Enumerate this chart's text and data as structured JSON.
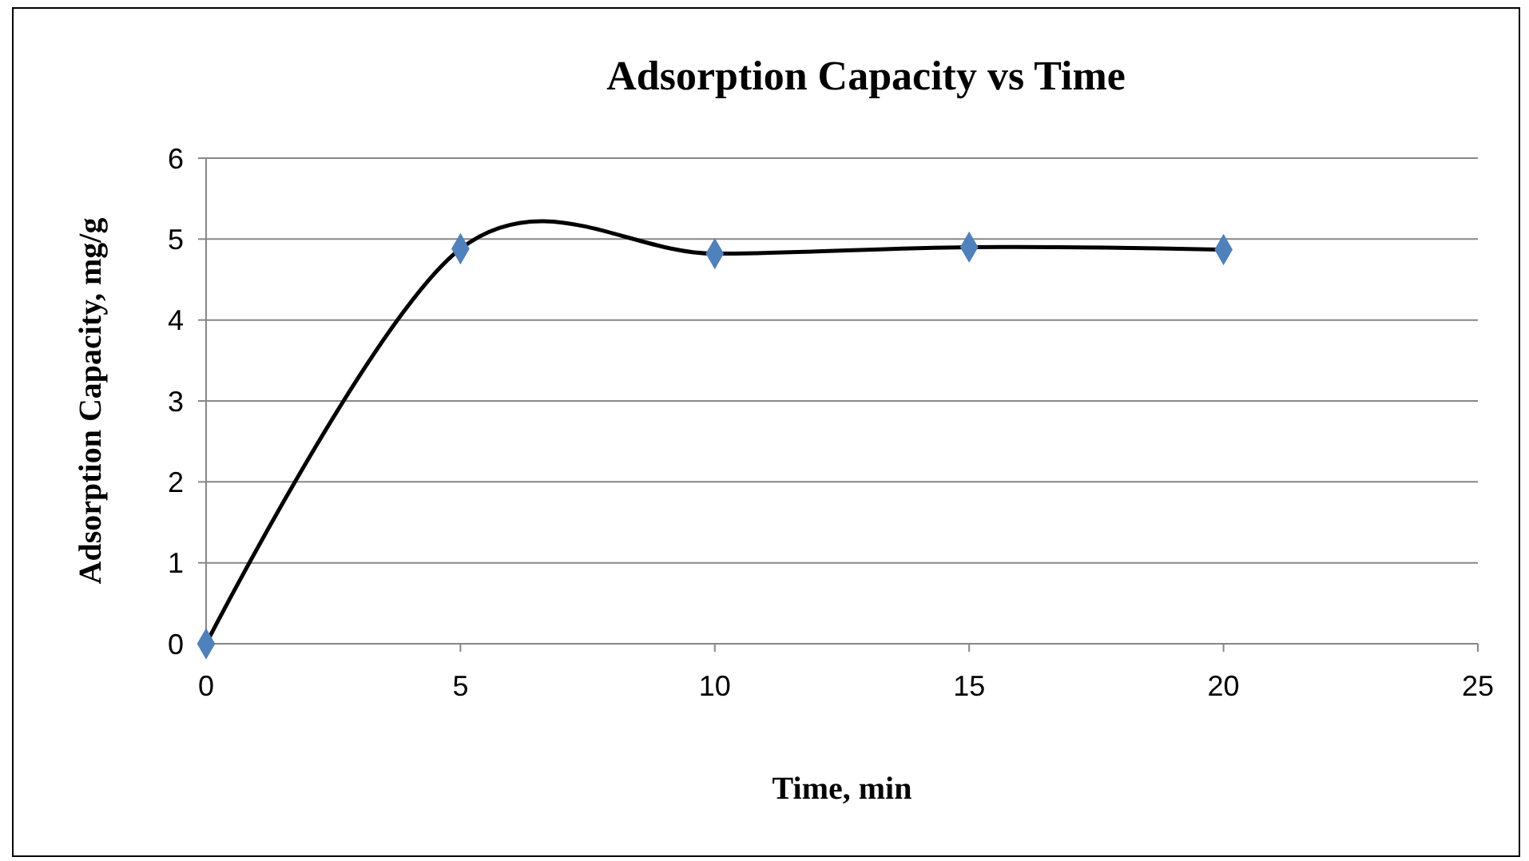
{
  "chart_data": {
    "type": "line",
    "title": "Adsorption Capacity vs Time",
    "xlabel": "Time, min",
    "ylabel": "Adsorption Capacity, mg/g",
    "x": [
      0,
      5,
      10,
      15,
      20
    ],
    "series": [
      {
        "color": "#4f81bd",
        "values": [
          0,
          4.88,
          4.82,
          4.9,
          4.87
        ]
      }
    ],
    "xlim": [
      0,
      25
    ],
    "xticks": [
      0,
      5,
      10,
      15,
      20,
      25
    ],
    "ylim": [
      0,
      6
    ],
    "yticks": [
      0,
      1,
      2,
      3,
      4,
      5,
      6
    ],
    "grid": "y",
    "marker": "diamond",
    "line_style": "solid"
  }
}
